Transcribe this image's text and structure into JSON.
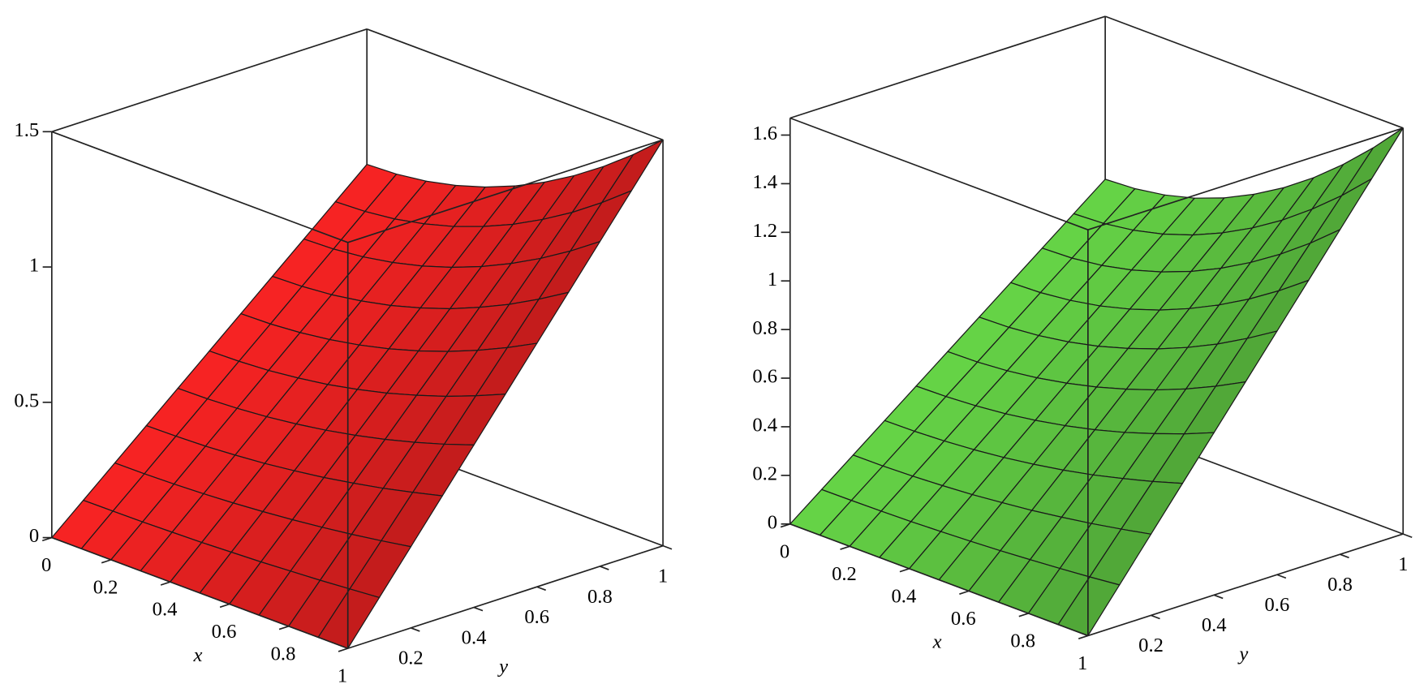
{
  "chart_data": [
    {
      "type": "surface",
      "color": "#e02020",
      "xlabel": "x",
      "ylabel": "y",
      "xlim": [
        0,
        1
      ],
      "ylim": [
        0,
        1
      ],
      "zlim": [
        0,
        1.5
      ],
      "xticks": [
        0,
        0.2,
        0.4,
        0.6,
        0.8,
        1
      ],
      "yticks": [
        0.2,
        0.4,
        0.6,
        0.8,
        1
      ],
      "zticks": [
        0,
        0.5,
        1,
        1.5
      ],
      "x": [
        0,
        0.1,
        0.2,
        0.3,
        0.4,
        0.5,
        0.6,
        0.7,
        0.8,
        0.9,
        1
      ],
      "y": [
        0,
        0.1,
        0.2,
        0.3,
        0.4,
        0.5,
        0.6,
        0.7,
        0.8,
        0.9,
        1
      ],
      "z": [
        [
          0,
          0,
          0,
          0,
          0,
          0,
          0,
          0,
          0,
          0,
          0
        ],
        [
          0.1,
          0.101,
          0.102,
          0.105,
          0.108,
          0.113,
          0.118,
          0.125,
          0.132,
          0.141,
          0.15
        ],
        [
          0.2,
          0.201,
          0.204,
          0.209,
          0.216,
          0.225,
          0.236,
          0.249,
          0.264,
          0.281,
          0.3
        ],
        [
          0.3,
          0.302,
          0.306,
          0.314,
          0.324,
          0.338,
          0.354,
          0.374,
          0.396,
          0.422,
          0.45
        ],
        [
          0.4,
          0.402,
          0.408,
          0.418,
          0.432,
          0.45,
          0.472,
          0.498,
          0.528,
          0.562,
          0.6
        ],
        [
          0.5,
          0.503,
          0.51,
          0.523,
          0.54,
          0.563,
          0.59,
          0.623,
          0.66,
          0.703,
          0.75
        ],
        [
          0.6,
          0.603,
          0.612,
          0.627,
          0.648,
          0.675,
          0.708,
          0.747,
          0.792,
          0.843,
          0.9
        ],
        [
          0.7,
          0.704,
          0.714,
          0.732,
          0.756,
          0.788,
          0.826,
          0.872,
          0.924,
          0.984,
          1.05
        ],
        [
          0.8,
          0.804,
          0.816,
          0.836,
          0.864,
          0.9,
          0.944,
          0.996,
          1.056,
          1.124,
          1.2
        ],
        [
          0.9,
          0.905,
          0.918,
          0.941,
          0.972,
          1.013,
          1.062,
          1.121,
          1.188,
          1.265,
          1.35
        ],
        [
          1,
          1.005,
          1.02,
          1.045,
          1.08,
          1.125,
          1.18,
          1.245,
          1.32,
          1.405,
          1.5
        ]
      ]
    },
    {
      "type": "surface",
      "color": "#5cc040",
      "xlabel": "x",
      "ylabel": "y",
      "xlim": [
        0,
        1
      ],
      "ylim": [
        0,
        1
      ],
      "zlim": [
        0,
        1.67
      ],
      "xticks": [
        0,
        0.2,
        0.4,
        0.6,
        0.8,
        1
      ],
      "yticks": [
        0.2,
        0.4,
        0.6,
        0.8,
        1
      ],
      "zticks": [
        0,
        0.2,
        0.4,
        0.6,
        0.8,
        1,
        1.2,
        1.4,
        1.6
      ],
      "x": [
        0,
        0.1,
        0.2,
        0.3,
        0.4,
        0.5,
        0.6,
        0.7,
        0.8,
        0.9,
        1
      ],
      "y": [
        0,
        0.1,
        0.2,
        0.3,
        0.4,
        0.5,
        0.6,
        0.7,
        0.8,
        0.9,
        1
      ],
      "z": [
        [
          0,
          0,
          0,
          0,
          0,
          0,
          0,
          0,
          0,
          0,
          0
        ],
        [
          0.1,
          0.101,
          0.103,
          0.106,
          0.111,
          0.117,
          0.124,
          0.133,
          0.143,
          0.154,
          0.167
        ],
        [
          0.2,
          0.201,
          0.205,
          0.212,
          0.221,
          0.234,
          0.248,
          0.266,
          0.286,
          0.309,
          0.334
        ],
        [
          0.3,
          0.302,
          0.308,
          0.318,
          0.332,
          0.35,
          0.372,
          0.398,
          0.429,
          0.463,
          0.501
        ],
        [
          0.4,
          0.403,
          0.411,
          0.424,
          0.443,
          0.467,
          0.496,
          0.531,
          0.572,
          0.617,
          0.668
        ],
        [
          0.5,
          0.503,
          0.513,
          0.53,
          0.554,
          0.584,
          0.621,
          0.664,
          0.714,
          0.771,
          0.835
        ],
        [
          0.6,
          0.604,
          0.616,
          0.636,
          0.664,
          0.701,
          0.745,
          0.797,
          0.857,
          0.926,
          1.002
        ],
        [
          0.7,
          0.705,
          0.719,
          0.742,
          0.775,
          0.817,
          0.869,
          0.93,
          1,
          1.08,
          1.169
        ],
        [
          0.8,
          0.805,
          0.821,
          0.848,
          0.886,
          0.934,
          0.993,
          1.063,
          1.143,
          1.234,
          1.336
        ],
        [
          0.9,
          0.906,
          0.924,
          0.954,
          0.996,
          1.051,
          1.117,
          1.195,
          1.286,
          1.388,
          1.503
        ],
        [
          1,
          1.007,
          1.027,
          1.06,
          1.107,
          1.168,
          1.241,
          1.328,
          1.429,
          1.543,
          1.67
        ]
      ]
    }
  ]
}
